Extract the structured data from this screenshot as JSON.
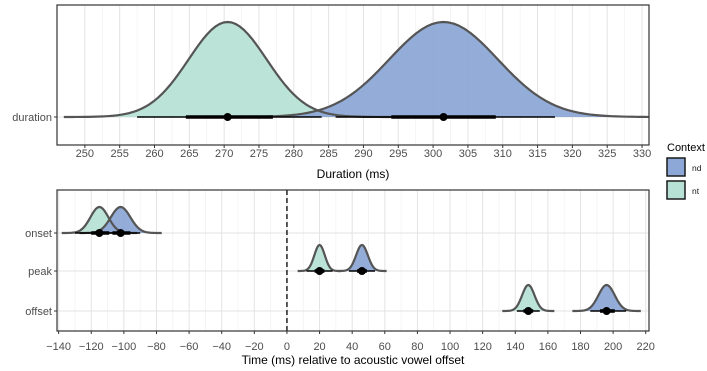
{
  "legend": {
    "title": "Context",
    "items": [
      {
        "label": "nd",
        "color": "#8DA8D6"
      },
      {
        "label": "nt",
        "color": "#B7E1D5"
      }
    ]
  },
  "chart_data": [
    {
      "type": "density",
      "title": "",
      "xlabel": "Duration (ms)",
      "ylabel": "",
      "xlim": [
        246,
        331
      ],
      "ticks": [
        250,
        255,
        260,
        265,
        270,
        275,
        280,
        285,
        290,
        295,
        300,
        305,
        310,
        315,
        320,
        325,
        330
      ],
      "rows": [
        "duration"
      ],
      "series": [
        {
          "name": "nt",
          "row": "duration",
          "color": "#B7E1D5",
          "mean": 270.5,
          "sd": 5.6,
          "p66": [
            264.5,
            277
          ],
          "p95": [
            257.5,
            284
          ]
        },
        {
          "name": "nd",
          "row": "duration",
          "color": "#8DA8D6",
          "mean": 301.5,
          "sd": 7.8,
          "p66": [
            294,
            309
          ],
          "p95": [
            286,
            317.5
          ]
        }
      ]
    },
    {
      "type": "density",
      "title": "",
      "xlabel": "Time (ms) relative to acoustic vowel offset",
      "ylabel": "",
      "xlim": [
        -141,
        222
      ],
      "ticks": [
        -140,
        -120,
        -100,
        -80,
        -60,
        -40,
        -20,
        0,
        20,
        40,
        60,
        80,
        100,
        120,
        140,
        160,
        180,
        200,
        220
      ],
      "vline": 0,
      "rows": [
        "onset",
        "peak",
        "offset"
      ],
      "series": [
        {
          "name": "nt",
          "row": "onset",
          "color": "#B7E1D5",
          "mean": -115,
          "sd": 5.5,
          "p66": [
            -120,
            -109
          ],
          "p95": [
            -130,
            -99
          ]
        },
        {
          "name": "nd",
          "row": "onset",
          "color": "#8DA8D6",
          "mean": -102,
          "sd": 6.0,
          "p66": [
            -107,
            -96
          ],
          "p95": [
            -115,
            -90
          ]
        },
        {
          "name": "nt",
          "row": "peak",
          "color": "#B7E1D5",
          "mean": 20,
          "sd": 3.2,
          "p66": [
            17,
            23
          ],
          "p95": [
            12,
            28
          ]
        },
        {
          "name": "nd",
          "row": "peak",
          "color": "#8DA8D6",
          "mean": 46,
          "sd": 3.6,
          "p66": [
            43,
            49
          ],
          "p95": [
            38,
            54
          ]
        },
        {
          "name": "nt",
          "row": "offset",
          "color": "#B7E1D5",
          "mean": 148,
          "sd": 3.8,
          "p66": [
            145,
            151
          ],
          "p95": [
            141,
            155
          ]
        },
        {
          "name": "nd",
          "row": "offset",
          "color": "#8DA8D6",
          "mean": 196,
          "sd": 5.0,
          "p66": [
            192,
            201
          ],
          "p95": [
            186,
            208
          ]
        }
      ]
    }
  ]
}
